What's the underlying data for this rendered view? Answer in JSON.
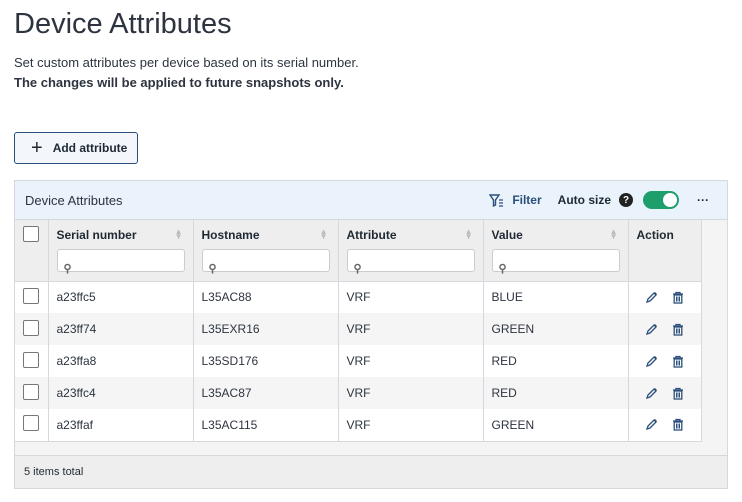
{
  "page": {
    "title": "Device Attributes",
    "subtitle": "Set custom attributes per device based on its serial number.",
    "note": "The changes will be applied to future snapshots only.",
    "add_button": "Add attribute"
  },
  "grid": {
    "title": "Device Attributes",
    "filter_label": "Filter",
    "autosize_label": "Auto size",
    "help": "?",
    "more": "···",
    "autosize_on": true,
    "toggle_color": "#1e9e6a",
    "columns": [
      "Serial number",
      "Hostname",
      "Attribute",
      "Value",
      "Action"
    ],
    "rows": [
      [
        "a23ffc5",
        "L35AC88",
        "VRF",
        "BLUE"
      ],
      [
        "a23ff74",
        "L35EXR16",
        "VRF",
        "GREEN"
      ],
      [
        "a23ffa8",
        "L35SD176",
        "VRF",
        "RED"
      ],
      [
        "a23ffc4",
        "L35AC87",
        "VRF",
        "RED"
      ],
      [
        "a23ffaf",
        "L35AC115",
        "VRF",
        "GREEN"
      ]
    ],
    "footer": "5 items total"
  }
}
